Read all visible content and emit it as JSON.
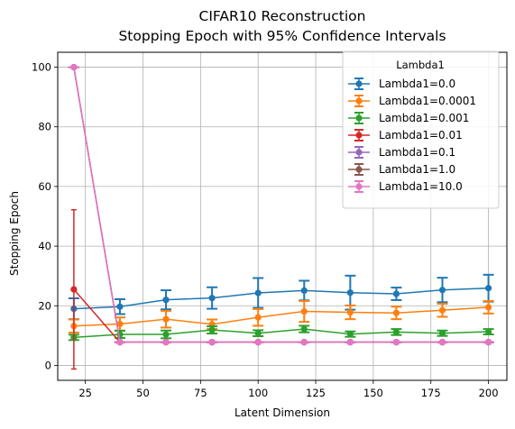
{
  "chart_data": {
    "type": "line",
    "title": "CIFAR10 Reconstruction",
    "subtitle": "Stopping Epoch with 95% Confidence Intervals",
    "xlabel": "Latent Dimension",
    "ylabel": "Stopping Epoch",
    "xlim": [
      13,
      208
    ],
    "ylim": [
      -5,
      105
    ],
    "xticks": [
      25,
      50,
      75,
      100,
      125,
      150,
      175,
      200
    ],
    "yticks": [
      0,
      20,
      40,
      60,
      80,
      100
    ],
    "grid": true,
    "legend": {
      "title": "Lambda1",
      "placement": "upper-right"
    },
    "x": [
      20,
      40,
      60,
      80,
      100,
      120,
      140,
      160,
      180,
      200
    ],
    "series": [
      {
        "name": "Lambda1=0.0",
        "color": "#1f77b4",
        "values": [
          19.0,
          19.7,
          22.0,
          22.6,
          24.3,
          25.1,
          24.4,
          24.0,
          25.3,
          25.9
        ],
        "err": [
          3.5,
          2.5,
          3.2,
          3.6,
          5.0,
          3.3,
          5.7,
          2.1,
          4.1,
          4.5
        ]
      },
      {
        "name": "Lambda1=0.0001",
        "color": "#ff7f0e",
        "values": [
          13.2,
          13.9,
          15.5,
          13.8,
          16.1,
          18.1,
          17.8,
          17.6,
          18.5,
          19.5
        ],
        "err": [
          2.2,
          2.2,
          2.8,
          1.6,
          2.8,
          3.5,
          2.3,
          2.1,
          2.2,
          2.1
        ]
      },
      {
        "name": "Lambda1=0.001",
        "color": "#2ca02c",
        "values": [
          9.4,
          10.4,
          10.4,
          11.9,
          10.8,
          12.2,
          10.5,
          11.2,
          10.8,
          11.3
        ],
        "err": [
          0.9,
          1.2,
          1.3,
          1.2,
          1.0,
          1.1,
          0.9,
          1.0,
          0.9,
          0.9
        ]
      },
      {
        "name": "Lambda1=0.01",
        "color": "#d62728",
        "values": [
          25.5,
          7.8,
          7.8,
          7.8,
          7.8,
          7.8,
          7.8,
          7.8,
          7.8,
          7.8
        ],
        "err": [
          26.7,
          0,
          0,
          0,
          0,
          0,
          0,
          0,
          0,
          0
        ]
      },
      {
        "name": "Lambda1=0.1",
        "color": "#9467bd",
        "values": [
          100,
          7.8,
          7.8,
          7.8,
          7.8,
          7.8,
          7.8,
          7.8,
          7.8,
          7.8
        ],
        "err": [
          0,
          0,
          0,
          0,
          0,
          0,
          0,
          0,
          0,
          0
        ]
      },
      {
        "name": "Lambda1=1.0",
        "color": "#8c564b",
        "values": [
          100,
          7.8,
          7.8,
          7.8,
          7.8,
          7.8,
          7.8,
          7.8,
          7.8,
          7.8
        ],
        "err": [
          0,
          0,
          0,
          0,
          0,
          0,
          0,
          0,
          0,
          0
        ]
      },
      {
        "name": "Lambda1=10.0",
        "color": "#e377c2",
        "values": [
          100,
          7.8,
          7.8,
          7.8,
          7.8,
          7.8,
          7.8,
          7.8,
          7.8,
          7.8
        ],
        "err": [
          0,
          0,
          0,
          0,
          0,
          0,
          0,
          0,
          0,
          0
        ]
      }
    ]
  }
}
